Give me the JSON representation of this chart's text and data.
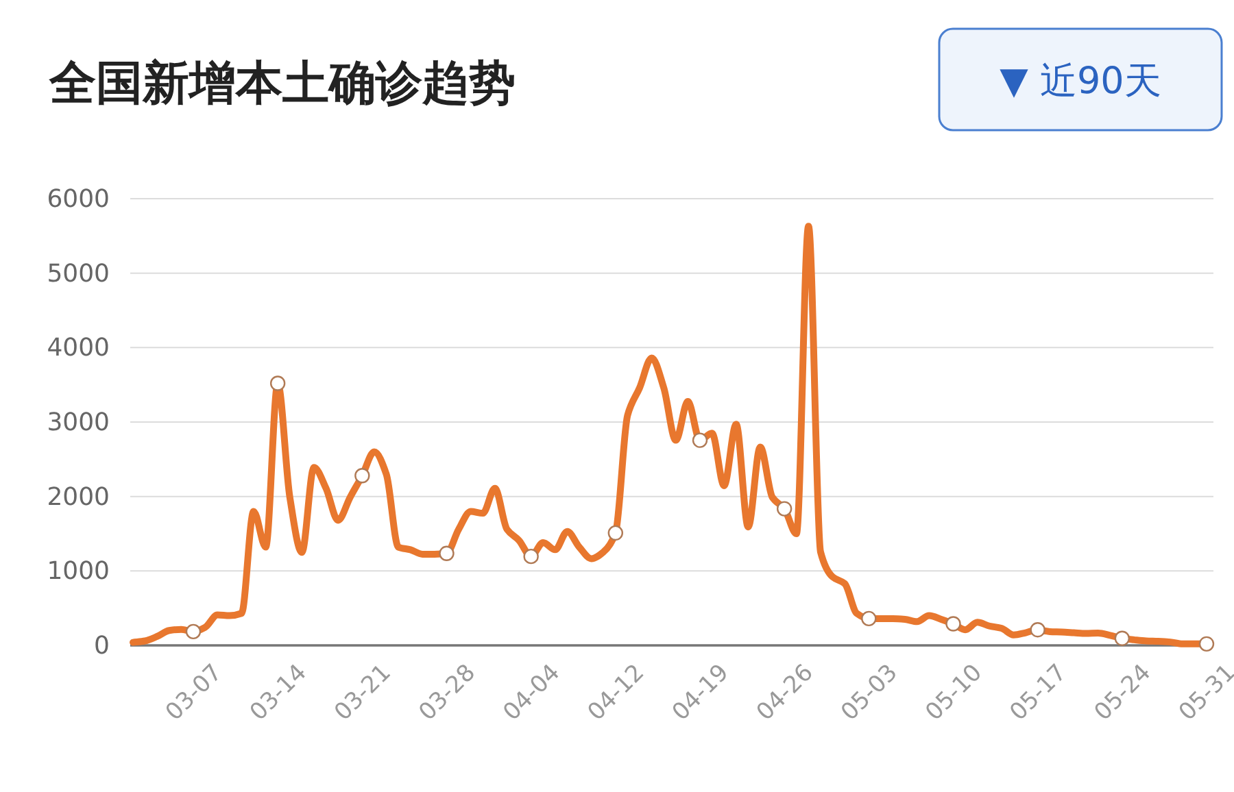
{
  "chart_data": {
    "type": "line",
    "title": "全国新增本土确诊趋势",
    "annotations": [
      "▼ 近90天"
    ],
    "categories": [
      null,
      null,
      null,
      null,
      null,
      "03-07",
      null,
      null,
      null,
      null,
      null,
      null,
      "03-14",
      null,
      null,
      null,
      null,
      null,
      null,
      "03-21",
      null,
      null,
      null,
      null,
      null,
      null,
      "03-28",
      null,
      null,
      null,
      null,
      null,
      null,
      "04-04",
      null,
      null,
      null,
      null,
      null,
      null,
      "04-12",
      null,
      null,
      null,
      null,
      null,
      null,
      "04-19",
      null,
      null,
      null,
      null,
      null,
      null,
      "04-26",
      null,
      null,
      null,
      null,
      null,
      null,
      "05-03",
      null,
      null,
      null,
      null,
      null,
      null,
      "05-10",
      null,
      null,
      null,
      null,
      null,
      null,
      "05-17",
      null,
      null,
      null,
      null,
      null,
      null,
      "05-24",
      null,
      null,
      null,
      null,
      null,
      null,
      "05-31"
    ],
    "series": [
      {
        "type": "line",
        "color": "#e8772e",
        "values": [
          40,
          60,
          120,
          200,
          215,
          185,
          245,
          410,
          400,
          430,
          1800,
          1320,
          3520,
          1990,
          1250,
          2390,
          2110,
          1680,
          1990,
          2280,
          2600,
          2300,
          1320,
          1285,
          1225,
          1225,
          1235,
          1560,
          1800,
          1775,
          2110,
          1560,
          1410,
          1195,
          1380,
          1285,
          1530,
          1320,
          1165,
          1255,
          1510,
          3090,
          3460,
          3860,
          3460,
          2755,
          3275,
          2755,
          2850,
          2145,
          2970,
          1590,
          2665,
          1990,
          1835,
          1500,
          5630,
          1255,
          920,
          830,
          430,
          360,
          360,
          360,
          350,
          320,
          400,
          350,
          290,
          210,
          310,
          260,
          230,
          140,
          170,
          210,
          185,
          180,
          170,
          160,
          165,
          135,
          95,
          75,
          60,
          55,
          45,
          20,
          20,
          20
        ]
      },
      {
        "type": "scatter",
        "color": "#ffffff",
        "x": [
          "03-07",
          "03-14",
          "03-21",
          "03-28",
          "04-04",
          "04-12",
          "04-19",
          "04-26",
          "05-03",
          "05-10",
          "05-17",
          "05-24",
          "05-31"
        ],
        "values": [
          185,
          3520,
          2280,
          1235,
          1195,
          1510,
          2755,
          1835,
          360,
          290,
          210,
          95,
          20
        ]
      }
    ],
    "ylim": [
      0,
      6000
    ],
    "yticks": [
      0,
      1000,
      2000,
      3000,
      4000,
      5000,
      6000
    ],
    "grid": "y"
  }
}
